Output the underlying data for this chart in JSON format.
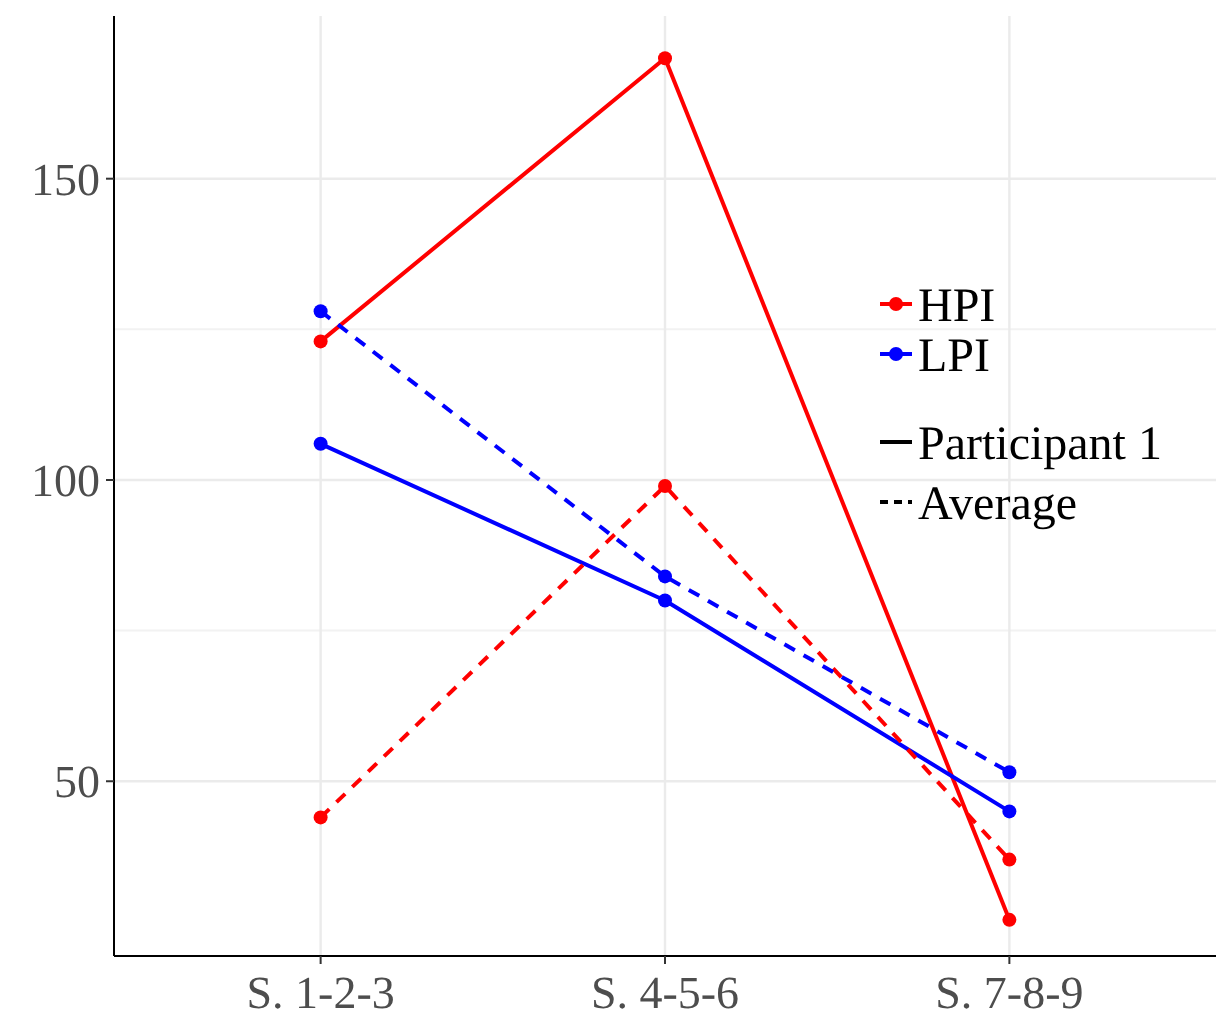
{
  "chart_data": {
    "type": "line",
    "categories": [
      "S. 1-2-3",
      "S. 4-5-6",
      "S. 7-8-9"
    ],
    "series": [
      {
        "name": "HPI",
        "color": "#ff0000",
        "values": [
          123,
          170,
          27
        ],
        "line_style": "solid"
      },
      {
        "name": "LPI",
        "color": "#0000ff",
        "values": [
          106,
          80,
          45
        ],
        "line_style": "solid"
      },
      {
        "color": "#ff0000",
        "values": [
          44,
          99,
          37
        ],
        "line_style": "dashed"
      },
      {
        "color": "#0000ff",
        "values": [
          128,
          84,
          51.5
        ],
        "line_style": "dashed"
      }
    ],
    "annotations": [
      "Participant 1",
      "Average"
    ],
    "ylim": [
      21,
      177
    ],
    "yticks": [
      50,
      {
        "value": 75,
        "label": null
      },
      100,
      {
        "value": 125,
        "label": null
      },
      150
    ],
    "grid": true,
    "marker": "circle",
    "legend": "right"
  }
}
